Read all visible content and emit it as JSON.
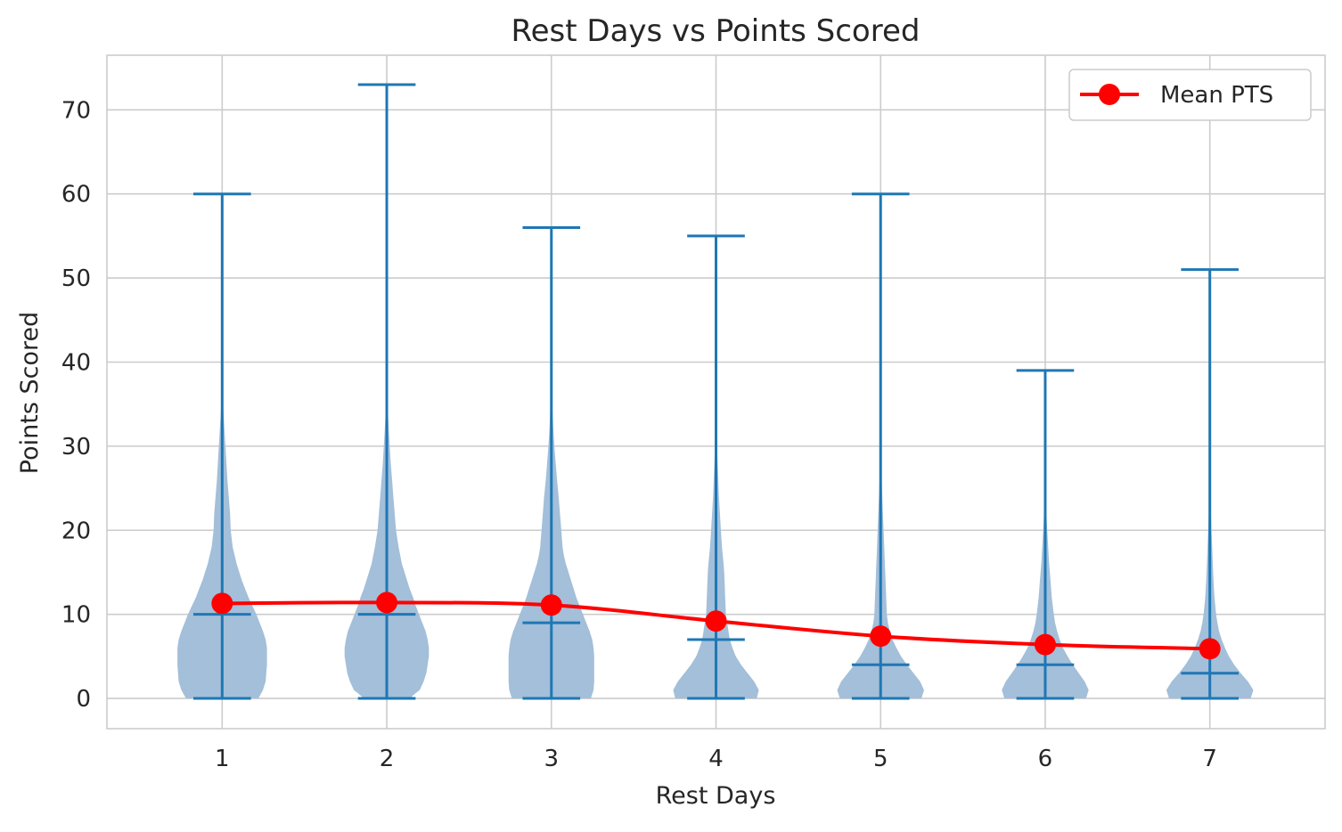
{
  "chart_data": {
    "type": "violin",
    "title": "Rest Days vs Points Scored",
    "xlabel": "Rest Days",
    "ylabel": "Points Scored",
    "categories": [
      "1",
      "2",
      "3",
      "4",
      "5",
      "6",
      "7"
    ],
    "xlim": [
      0.3,
      7.7
    ],
    "ylim": [
      -3.6,
      76.5
    ],
    "yticks": [
      0,
      10,
      20,
      30,
      40,
      50,
      60,
      70
    ],
    "grid": true,
    "legend": {
      "placement": "top-right",
      "entries": [
        "Mean PTS"
      ]
    },
    "colors": {
      "violin_body": "#a3bfd9",
      "violin_lines": "#1f77b4",
      "mean_line": "#ff0000",
      "grid": "#cccccc",
      "spine": "#cccccc"
    },
    "violins": [
      {
        "category": "1",
        "min": 0,
        "median": 10,
        "max": 60
      },
      {
        "category": "2",
        "min": 0,
        "median": 10,
        "max": 73
      },
      {
        "category": "3",
        "min": 0,
        "median": 9,
        "max": 56
      },
      {
        "category": "4",
        "min": 0,
        "median": 7,
        "max": 55
      },
      {
        "category": "5",
        "min": 0,
        "median": 4,
        "max": 60
      },
      {
        "category": "6",
        "min": 0,
        "median": 4,
        "max": 39
      },
      {
        "category": "7",
        "min": 0,
        "median": 3,
        "max": 51
      }
    ],
    "violin_shapes": [
      [
        [
          0,
          0.55
        ],
        [
          1,
          0.62
        ],
        [
          2,
          0.66
        ],
        [
          3,
          0.67
        ],
        [
          4,
          0.68
        ],
        [
          5,
          0.68
        ],
        [
          6,
          0.68
        ],
        [
          7,
          0.66
        ],
        [
          8,
          0.62
        ],
        [
          9,
          0.57
        ],
        [
          10,
          0.52
        ],
        [
          11,
          0.46
        ],
        [
          12,
          0.4
        ],
        [
          13,
          0.35
        ],
        [
          14,
          0.3
        ],
        [
          15,
          0.26
        ],
        [
          16,
          0.22
        ],
        [
          17,
          0.19
        ],
        [
          18,
          0.16
        ],
        [
          20,
          0.13
        ],
        [
          22,
          0.12
        ],
        [
          24,
          0.1
        ],
        [
          26,
          0.08
        ],
        [
          28,
          0.065
        ],
        [
          30,
          0.05
        ],
        [
          32,
          0.035
        ],
        [
          34,
          0.02
        ],
        [
          36,
          0.01
        ],
        [
          38,
          0.004
        ],
        [
          40,
          0.002
        ],
        [
          45,
          0.001
        ],
        [
          50,
          0.0007
        ],
        [
          55,
          0.0005
        ],
        [
          60,
          0.0003
        ]
      ],
      [
        [
          0,
          0.35
        ],
        [
          0.5,
          0.42
        ],
        [
          1,
          0.5
        ],
        [
          2,
          0.56
        ],
        [
          3,
          0.6
        ],
        [
          4,
          0.62
        ],
        [
          5,
          0.64
        ],
        [
          6,
          0.64
        ],
        [
          7,
          0.62
        ],
        [
          8,
          0.59
        ],
        [
          9,
          0.54
        ],
        [
          10,
          0.49
        ],
        [
          11,
          0.44
        ],
        [
          12,
          0.4
        ],
        [
          13,
          0.35
        ],
        [
          14,
          0.31
        ],
        [
          15,
          0.27
        ],
        [
          16,
          0.23
        ],
        [
          18,
          0.18
        ],
        [
          20,
          0.14
        ],
        [
          22,
          0.12
        ],
        [
          24,
          0.1
        ],
        [
          26,
          0.08
        ],
        [
          28,
          0.06
        ],
        [
          30,
          0.045
        ],
        [
          32,
          0.03
        ],
        [
          34,
          0.017
        ],
        [
          36,
          0.008
        ],
        [
          40,
          0.003
        ],
        [
          50,
          0.0012
        ],
        [
          60,
          0.0006
        ],
        [
          73,
          0.0003
        ]
      ],
      [
        [
          0,
          0.6
        ],
        [
          1,
          0.64
        ],
        [
          2,
          0.65
        ],
        [
          3,
          0.65
        ],
        [
          4,
          0.65
        ],
        [
          5,
          0.65
        ],
        [
          6,
          0.64
        ],
        [
          7,
          0.62
        ],
        [
          8,
          0.58
        ],
        [
          9,
          0.53
        ],
        [
          10,
          0.48
        ],
        [
          11,
          0.43
        ],
        [
          12,
          0.38
        ],
        [
          13,
          0.34
        ],
        [
          14,
          0.3
        ],
        [
          15,
          0.26
        ],
        [
          16,
          0.22
        ],
        [
          17,
          0.19
        ],
        [
          18,
          0.17
        ],
        [
          20,
          0.15
        ],
        [
          22,
          0.13
        ],
        [
          24,
          0.11
        ],
        [
          26,
          0.085
        ],
        [
          28,
          0.065
        ],
        [
          30,
          0.045
        ],
        [
          32,
          0.03
        ],
        [
          34,
          0.018
        ],
        [
          36,
          0.009
        ],
        [
          38,
          0.004
        ],
        [
          40,
          0.002
        ],
        [
          45,
          0.001
        ],
        [
          56,
          0.0004
        ]
      ],
      [
        [
          0,
          0.62
        ],
        [
          1,
          0.65
        ],
        [
          2,
          0.58
        ],
        [
          3,
          0.48
        ],
        [
          4,
          0.38
        ],
        [
          5,
          0.3
        ],
        [
          6,
          0.25
        ],
        [
          7,
          0.21
        ],
        [
          8,
          0.19
        ],
        [
          9,
          0.17
        ],
        [
          10,
          0.15
        ],
        [
          12,
          0.14
        ],
        [
          14,
          0.13
        ],
        [
          15,
          0.125
        ],
        [
          16,
          0.115
        ],
        [
          18,
          0.09
        ],
        [
          20,
          0.075
        ],
        [
          22,
          0.06
        ],
        [
          24,
          0.045
        ],
        [
          26,
          0.035
        ],
        [
          28,
          0.025
        ],
        [
          30,
          0.016
        ],
        [
          32,
          0.01
        ],
        [
          34,
          0.006
        ],
        [
          36,
          0.003
        ],
        [
          40,
          0.0015
        ],
        [
          50,
          0.0006
        ],
        [
          55,
          0.0003
        ]
      ],
      [
        [
          0,
          0.62
        ],
        [
          1,
          0.66
        ],
        [
          2,
          0.6
        ],
        [
          3,
          0.5
        ],
        [
          4,
          0.4
        ],
        [
          5,
          0.31
        ],
        [
          6,
          0.24
        ],
        [
          7,
          0.18
        ],
        [
          8,
          0.14
        ],
        [
          9,
          0.11
        ],
        [
          10,
          0.095
        ],
        [
          12,
          0.085
        ],
        [
          14,
          0.075
        ],
        [
          16,
          0.065
        ],
        [
          18,
          0.055
        ],
        [
          20,
          0.045
        ],
        [
          22,
          0.035
        ],
        [
          24,
          0.025
        ],
        [
          26,
          0.016
        ],
        [
          28,
          0.01
        ],
        [
          30,
          0.006
        ],
        [
          32,
          0.003
        ],
        [
          36,
          0.0015
        ],
        [
          45,
          0.0008
        ],
        [
          60,
          0.0003
        ]
      ],
      [
        [
          0,
          0.62
        ],
        [
          1,
          0.66
        ],
        [
          2,
          0.6
        ],
        [
          3,
          0.51
        ],
        [
          4,
          0.42
        ],
        [
          5,
          0.34
        ],
        [
          6,
          0.27
        ],
        [
          7,
          0.22
        ],
        [
          8,
          0.18
        ],
        [
          9,
          0.15
        ],
        [
          10,
          0.13
        ],
        [
          12,
          0.1
        ],
        [
          14,
          0.08
        ],
        [
          16,
          0.06
        ],
        [
          18,
          0.045
        ],
        [
          20,
          0.03
        ],
        [
          22,
          0.018
        ],
        [
          24,
          0.009
        ],
        [
          28,
          0.004
        ],
        [
          32,
          0.002
        ],
        [
          39,
          0.0005
        ]
      ],
      [
        [
          0,
          0.62
        ],
        [
          1,
          0.66
        ],
        [
          2,
          0.58
        ],
        [
          3,
          0.47
        ],
        [
          4,
          0.37
        ],
        [
          5,
          0.29
        ],
        [
          6,
          0.23
        ],
        [
          7,
          0.18
        ],
        [
          8,
          0.14
        ],
        [
          9,
          0.115
        ],
        [
          10,
          0.095
        ],
        [
          12,
          0.07
        ],
        [
          14,
          0.055
        ],
        [
          16,
          0.045
        ],
        [
          18,
          0.035
        ],
        [
          20,
          0.025
        ],
        [
          22,
          0.016
        ],
        [
          24,
          0.008
        ],
        [
          26,
          0.003
        ],
        [
          30,
          0.0015
        ],
        [
          40,
          0.0008
        ],
        [
          51,
          0.0003
        ]
      ]
    ],
    "series": [
      {
        "name": "Mean PTS",
        "type": "line",
        "x": [
          1,
          2,
          3,
          4,
          5,
          6,
          7
        ],
        "values": [
          11.3,
          11.4,
          11.1,
          9.2,
          7.4,
          6.4,
          5.9
        ]
      }
    ]
  }
}
